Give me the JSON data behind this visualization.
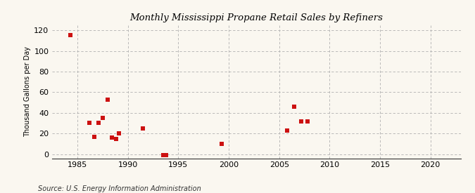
{
  "title": "Monthly Mississippi Propane Retail Sales by Refiners",
  "ylabel": "Thousand Gallons per Day",
  "source": "Source: U.S. Energy Information Administration",
  "background_color": "#faf7f0",
  "plot_bg_color": "#faf7f0",
  "scatter_color": "#cc1111",
  "xlim": [
    1982.5,
    2023
  ],
  "ylim": [
    -4,
    125
  ],
  "xticks": [
    1985,
    1990,
    1995,
    2000,
    2005,
    2010,
    2015,
    2020
  ],
  "yticks": [
    0,
    20,
    40,
    60,
    80,
    100,
    120
  ],
  "data_x": [
    1984.3,
    1986.2,
    1986.7,
    1987.1,
    1987.5,
    1988.0,
    1988.4,
    1988.8,
    1989.1,
    1991.5,
    1993.5,
    1993.8,
    1999.3,
    2005.8,
    2006.5,
    2007.2,
    2007.8
  ],
  "data_y": [
    115,
    30,
    17,
    30,
    35,
    53,
    16,
    15,
    20,
    25,
    -1,
    -1,
    10,
    23,
    46,
    32,
    32
  ]
}
